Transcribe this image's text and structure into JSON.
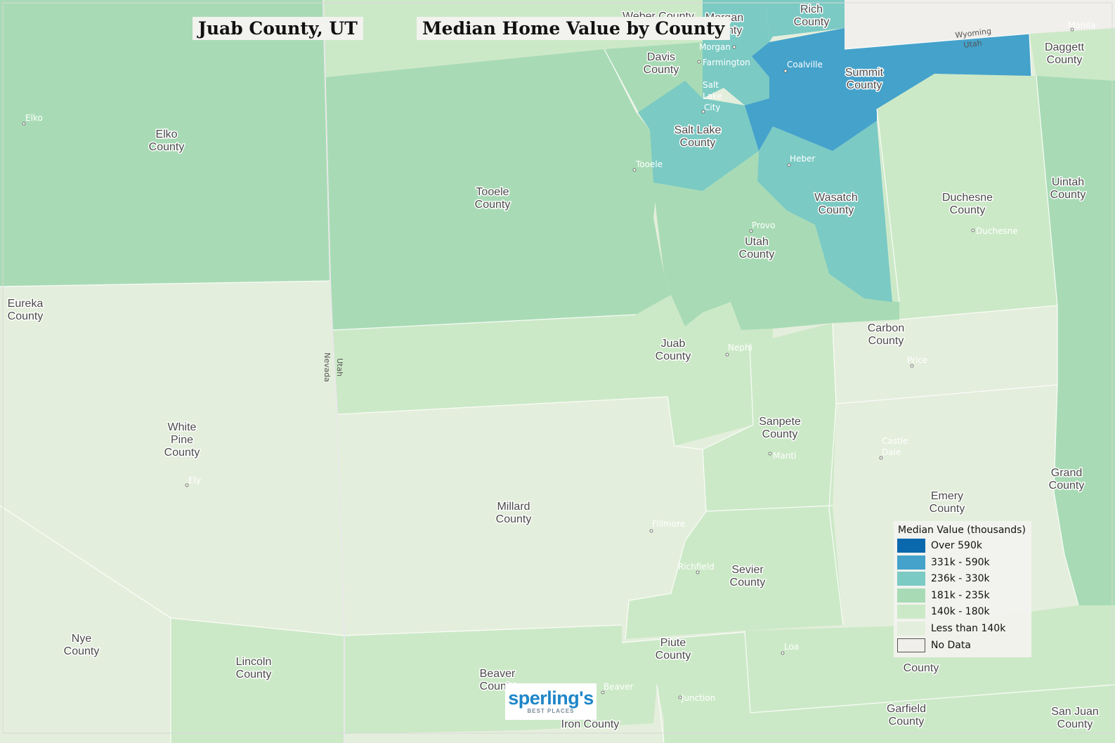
{
  "title": "Juab County, UT",
  "map_title": "Median Home Value by County",
  "legend": {
    "title": "Median Value (thousands)",
    "items": [
      {
        "label": "Over 590k",
        "color": "#0a68ad"
      },
      {
        "label": "331k - 590k",
        "color": "#44a2cb"
      },
      {
        "label": "236k - 330k",
        "color": "#7bcac4"
      },
      {
        "label": "181k - 235k",
        "color": "#a8dbb5"
      },
      {
        "label": "140k - 180k",
        "color": "#cce9c7"
      },
      {
        "label": "Less than 140k",
        "color": "#e4eedc"
      },
      {
        "label": "No Data",
        "color": "#f0efeb"
      }
    ]
  },
  "counties": [
    {
      "name": "Elko County",
      "lines": [
        "Elko",
        "County"
      ],
      "class": "181k - 235k"
    },
    {
      "name": "Tooele County",
      "lines": [
        "Tooele",
        "County"
      ],
      "class": "181k - 235k"
    },
    {
      "name": "Eureka County",
      "lines": [
        "Eureka",
        "County"
      ],
      "class": "Less than 140k"
    },
    {
      "name": "White Pine County",
      "lines": [
        "White",
        "Pine",
        "County"
      ],
      "class": "Less than 140k"
    },
    {
      "name": "Nye County",
      "lines": [
        "Nye",
        "County"
      ],
      "class": "Less than 140k"
    },
    {
      "name": "Lincoln County",
      "lines": [
        "Lincoln",
        "County"
      ],
      "class": "140k - 180k"
    },
    {
      "name": "Millard County",
      "lines": [
        "Millard",
        "County"
      ],
      "class": "Less than 140k"
    },
    {
      "name": "Juab County",
      "lines": [
        "Juab",
        "County"
      ],
      "class": "140k - 180k"
    },
    {
      "name": "Utah County",
      "lines": [
        "Utah",
        "County"
      ],
      "class": "181k - 235k"
    },
    {
      "name": "Salt Lake County",
      "lines": [
        "Salt Lake",
        "County"
      ],
      "class": "236k - 330k"
    },
    {
      "name": "Davis County",
      "lines": [
        "Davis",
        "County"
      ],
      "class": "181k - 235k"
    },
    {
      "name": "Morgan County",
      "lines": [
        "Morgan",
        "County"
      ],
      "class": "236k - 330k"
    },
    {
      "name": "Rich County",
      "lines": [
        "Rich",
        "County"
      ],
      "class": "236k - 330k"
    },
    {
      "name": "Summit County",
      "lines": [
        "Summit",
        "County"
      ],
      "class": "331k - 590k"
    },
    {
      "name": "Wasatch County",
      "lines": [
        "Wasatch",
        "County"
      ],
      "class": "236k - 330k"
    },
    {
      "name": "Daggett County",
      "lines": [
        "Daggett",
        "County"
      ],
      "class": "140k - 180k"
    },
    {
      "name": "Duchesne County",
      "lines": [
        "Duchesne",
        "County"
      ],
      "class": "140k - 180k"
    },
    {
      "name": "Uintah County",
      "lines": [
        "Uintah",
        "County"
      ],
      "class": "181k - 235k"
    },
    {
      "name": "Carbon County",
      "lines": [
        "Carbon",
        "County"
      ],
      "class": "Less than 140k"
    },
    {
      "name": "Emery County",
      "lines": [
        "Emery",
        "County"
      ],
      "class": "Less than 140k"
    },
    {
      "name": "Grand County",
      "lines": [
        "Grand",
        "County"
      ],
      "class": "181k - 235k"
    },
    {
      "name": "Sanpete County",
      "lines": [
        "Sanpete",
        "County"
      ],
      "class": "140k - 180k"
    },
    {
      "name": "Sevier County",
      "lines": [
        "Sevier",
        "County"
      ],
      "class": "140k - 180k"
    },
    {
      "name": "Piute County",
      "lines": [
        "Piute",
        "County"
      ],
      "class": "140k - 180k"
    },
    {
      "name": "Beaver County",
      "lines": [
        "Beaver",
        "County"
      ],
      "class": "140k - 180k"
    },
    {
      "name": "Iron County",
      "lines": [
        "Iron County"
      ],
      "class": "140k - 180k"
    },
    {
      "name": "Garfield County",
      "lines": [
        "Garfield",
        "County"
      ],
      "class": "140k - 180k"
    },
    {
      "name": "San Juan County",
      "lines": [
        "San Juan",
        "County"
      ],
      "class": "140k - 180k"
    },
    {
      "name": "Wayne County",
      "lines": [
        "County"
      ],
      "class": "140k - 180k"
    },
    {
      "name": "Weber County",
      "lines": [
        "Weber County"
      ],
      "class": "140k - 180k"
    }
  ],
  "cities": [
    "Elko",
    "Tooele",
    "Salt Lake City",
    "Farmington",
    "Morgan",
    "Coalville",
    "Heber",
    "Provo",
    "Duchesne",
    "Nephi",
    "Price",
    "Castle Dale",
    "Manti",
    "Ely",
    "Fillmore",
    "Richfield",
    "Loa",
    "Beaver",
    "Junction",
    "Manila"
  ],
  "state_labels": [
    "Utah",
    "Nevada",
    "Wyoming"
  ],
  "logo": {
    "main": "sperling's",
    "sub": "BEST PLACES"
  }
}
